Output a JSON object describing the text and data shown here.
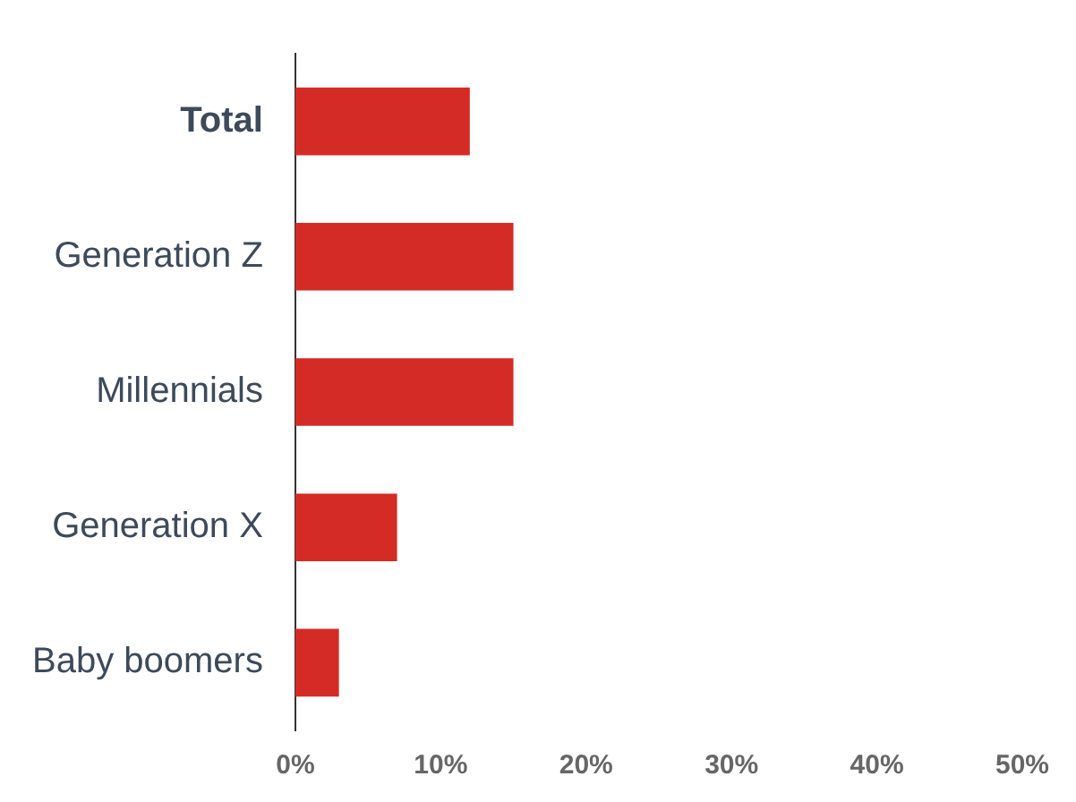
{
  "chart_data": {
    "type": "bar",
    "orientation": "horizontal",
    "categories": [
      "Total",
      "Generation Z",
      "Millennials",
      "Generation X",
      "Baby boomers"
    ],
    "values": [
      12,
      15,
      15,
      7,
      3
    ],
    "color": "#d42b27",
    "xlim": [
      0,
      50
    ],
    "xticks": [
      {
        "value": 0,
        "label": "0%"
      },
      {
        "value": 10,
        "label": "10%"
      },
      {
        "value": 20,
        "label": "20%"
      },
      {
        "value": 30,
        "label": "30%"
      },
      {
        "value": 40,
        "label": "40%"
      },
      {
        "value": 50,
        "label": "50%"
      }
    ],
    "grid": false,
    "legend": false
  }
}
